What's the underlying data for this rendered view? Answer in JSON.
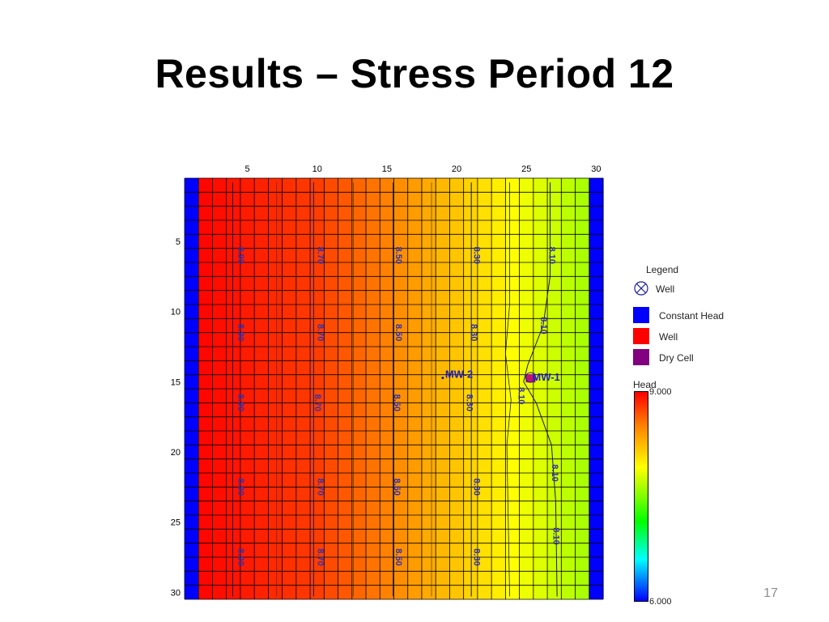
{
  "slide": {
    "title": "Results – Stress Period 12",
    "page_number": "17"
  },
  "grid": {
    "columns": 30,
    "rows": 30,
    "column_ticks": [
      "5",
      "10",
      "15",
      "20",
      "25",
      "30"
    ],
    "row_ticks": [
      "5",
      "10",
      "15",
      "20",
      "25",
      "30"
    ],
    "constant_head_columns": [
      1,
      30
    ],
    "constant_head_color": "#0000ff",
    "column_head_values": [
      9.0,
      8.98,
      8.96,
      8.94,
      8.92,
      8.9,
      8.88,
      8.86,
      8.84,
      8.82,
      8.78,
      8.74,
      8.7,
      8.66,
      8.62,
      8.58,
      8.54,
      8.5,
      8.46,
      8.42,
      8.38,
      8.34,
      8.3,
      8.25,
      8.2,
      8.15,
      8.1,
      8.05,
      8.0,
      8.0
    ]
  },
  "contour_labels": [
    {
      "text": "8.90",
      "col": 4,
      "row": 5.5
    },
    {
      "text": "8.70",
      "col": 9.7,
      "row": 5.5
    },
    {
      "text": "8.50",
      "col": 15.3,
      "row": 5.5
    },
    {
      "text": "8.30",
      "col": 20.9,
      "row": 5.5
    },
    {
      "text": "8.10",
      "col": 26.3,
      "row": 5.5
    },
    {
      "text": "8.90",
      "col": 4,
      "row": 11
    },
    {
      "text": "8.70",
      "col": 9.7,
      "row": 11
    },
    {
      "text": "8.50",
      "col": 15.3,
      "row": 11
    },
    {
      "text": "8.30",
      "col": 20.7,
      "row": 11
    },
    {
      "text": "8.10",
      "col": 25.7,
      "row": 10.5
    },
    {
      "text": "8.90",
      "col": 4,
      "row": 16
    },
    {
      "text": "8.70",
      "col": 9.5,
      "row": 16
    },
    {
      "text": "8.50",
      "col": 15.2,
      "row": 16
    },
    {
      "text": "8.30",
      "col": 20.4,
      "row": 16
    },
    {
      "text": "8.10",
      "col": 24.1,
      "row": 15.5
    },
    {
      "text": "8.90",
      "col": 4,
      "row": 22
    },
    {
      "text": "8.70",
      "col": 9.7,
      "row": 22
    },
    {
      "text": "8.50",
      "col": 15.2,
      "row": 22
    },
    {
      "text": "8.30",
      "col": 20.9,
      "row": 22
    },
    {
      "text": "8.10",
      "col": 26.5,
      "row": 21
    },
    {
      "text": "8.90",
      "col": 4,
      "row": 27
    },
    {
      "text": "8.70",
      "col": 9.7,
      "row": 27
    },
    {
      "text": "8.50",
      "col": 15.3,
      "row": 27
    },
    {
      "text": "8.30",
      "col": 20.9,
      "row": 27
    },
    {
      "text": "8.10",
      "col": 26.6,
      "row": 25.5
    }
  ],
  "wells": [
    {
      "name": "MW-2",
      "col": 18.5,
      "row": 14
    },
    {
      "name": "MW-1",
      "col": 24.8,
      "row": 14.2
    }
  ],
  "legend": {
    "title": "Legend",
    "items": [
      {
        "label": "Well",
        "symbol": "well-symbol-icon",
        "color": "#ffffff"
      },
      {
        "label": "Constant Head",
        "symbol": "swatch",
        "color": "#0000ff"
      },
      {
        "label": "Well",
        "symbol": "swatch",
        "color": "#ff0000"
      },
      {
        "label": "Dry Cell",
        "symbol": "swatch",
        "color": "#800080"
      }
    ],
    "colorbar": {
      "title": "Head",
      "max_label": "9.000",
      "min_label": "6.000",
      "max": 9.0,
      "min": 6.0
    }
  }
}
